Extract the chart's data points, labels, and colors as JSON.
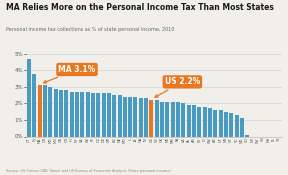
{
  "title": "MA Relies More on the Personal Income Tax Than Most States",
  "subtitle": "Personal income tax collections as % of state personal income, 2010",
  "source": "Source: US Census (SBL Taxes) and US Bureau of Economic Analysis (State personal income)",
  "bar_color": "#4a9bc2",
  "highlight_color": "#e87722",
  "ma_label": "MA 3.1%",
  "us_label": "US 2.2%",
  "ylim_max": 0.055,
  "yticks": [
    0,
    0.01,
    0.02,
    0.03,
    0.04,
    0.05
  ],
  "ytick_labels": [
    "0%",
    "1%",
    "2%",
    "3%",
    "4%",
    "5%"
  ],
  "states": [
    "CT",
    "NJ",
    "MA",
    "OR",
    "MD",
    "MN",
    "CA",
    "CO",
    "HI",
    "NY",
    "VA",
    "WI",
    "RI",
    "DC",
    "DE",
    "MT",
    "KS",
    "NE",
    "MO",
    "IL",
    "IA",
    "GA",
    "IN",
    "US",
    "NC",
    "OK",
    "ME",
    "NM",
    "PA",
    "LA",
    "AL",
    "AR",
    "KY",
    "ID",
    "WV",
    "AZ",
    "UT",
    "MS",
    "VT",
    "SC",
    "ND",
    "SD",
    "NV",
    "WY",
    "TN",
    "NH",
    "FL",
    "TX"
  ],
  "values": [
    0.047,
    0.038,
    0.031,
    0.031,
    0.03,
    0.029,
    0.028,
    0.028,
    0.027,
    0.027,
    0.027,
    0.027,
    0.026,
    0.026,
    0.026,
    0.026,
    0.025,
    0.025,
    0.024,
    0.024,
    0.024,
    0.023,
    0.023,
    0.022,
    0.022,
    0.021,
    0.021,
    0.021,
    0.021,
    0.02,
    0.019,
    0.019,
    0.018,
    0.018,
    0.017,
    0.016,
    0.016,
    0.015,
    0.014,
    0.013,
    0.011,
    0.001,
    0.0,
    0.0,
    0.0,
    0.0,
    0.0,
    0.0
  ],
  "ma_index": 2,
  "us_index": 23,
  "background_color": "#f0efea",
  "title_color": "#1a1a1a",
  "subtitle_color": "#666666",
  "source_color": "#888888",
  "tick_color": "#555555"
}
